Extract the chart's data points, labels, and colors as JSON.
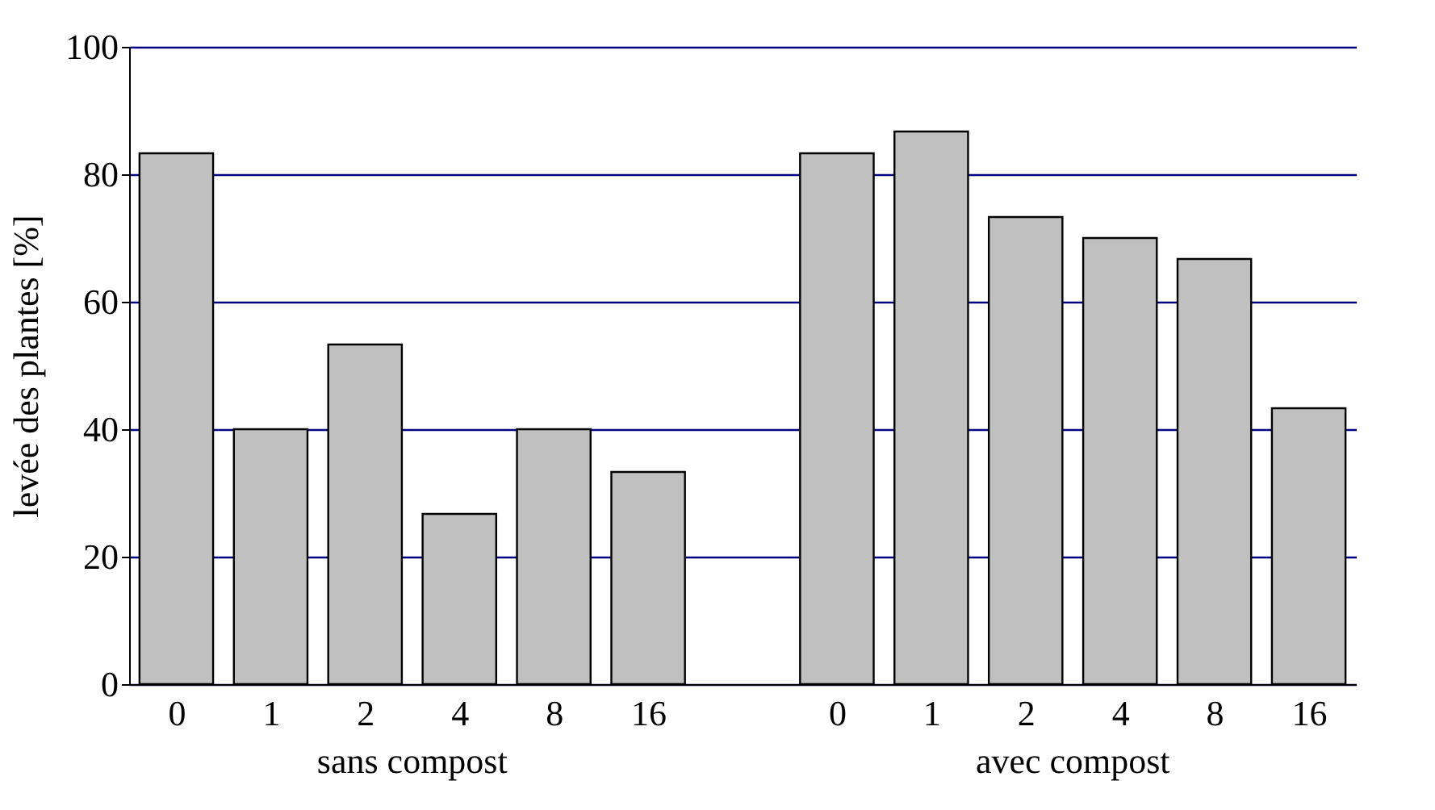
{
  "chart_data": {
    "type": "bar",
    "ylabel": "levée des plantes [%]",
    "categories": [
      "0",
      "1",
      "2",
      "4",
      "8",
      "16",
      null,
      "0",
      "1",
      "2",
      "4",
      "8",
      "16"
    ],
    "values": [
      83.3,
      40,
      53.3,
      26.7,
      40,
      33.3,
      null,
      83.3,
      86.7,
      73.3,
      70,
      66.7,
      43.3
    ],
    "color": "#c0c0c0",
    "ylim": [
      0,
      100
    ],
    "yticks": [
      0,
      20,
      40,
      60,
      80,
      100
    ],
    "grid": "y",
    "annotations": [
      "sans compost",
      "avec compost"
    ]
  }
}
